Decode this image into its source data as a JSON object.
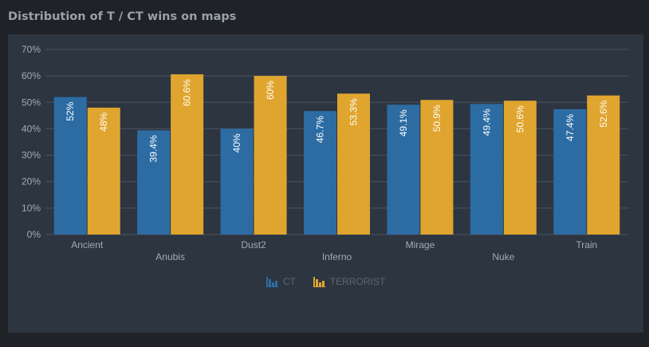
{
  "page": {
    "title": "Distribution of T / CT wins on maps"
  },
  "colors": {
    "ct": "#2d6ca3",
    "terrorist": "#e0a52e",
    "grid": "#4a5360",
    "tick_text": "#a3aab2",
    "value_text": "#ffffff",
    "legend_text": "#5e6670"
  },
  "legend": {
    "ct_label": "CT",
    "terrorist_label": "TERRORIST",
    "ct_icon": "bar-chart-icon",
    "terrorist_icon": "bar-chart-icon",
    "placement": "bottom-center"
  },
  "chart_data": {
    "type": "bar",
    "categories": [
      "Ancient",
      "Anubis",
      "Dust2",
      "Inferno",
      "Mirage",
      "Nuke",
      "Train"
    ],
    "series": [
      {
        "name": "CT",
        "values": [
          52,
          39.4,
          40,
          46.7,
          49.1,
          49.4,
          47.4
        ],
        "labels": [
          "52%",
          "39.4%",
          "40%",
          "46.7%",
          "49.1%",
          "49.4%",
          "47.4%"
        ]
      },
      {
        "name": "TERRORIST",
        "values": [
          48,
          60.6,
          60,
          53.3,
          50.9,
          50.6,
          52.6
        ],
        "labels": [
          "48%",
          "60.6%",
          "60%",
          "53.3%",
          "50.9%",
          "50.6%",
          "52.6%"
        ]
      }
    ],
    "yticks": [
      "0%",
      "10%",
      "20%",
      "30%",
      "40%",
      "50%",
      "60%",
      "70%"
    ],
    "ylim": [
      0,
      70
    ],
    "grid": true,
    "title": "Distribution of T / CT wins on maps",
    "xlabel": "",
    "ylabel": ""
  }
}
